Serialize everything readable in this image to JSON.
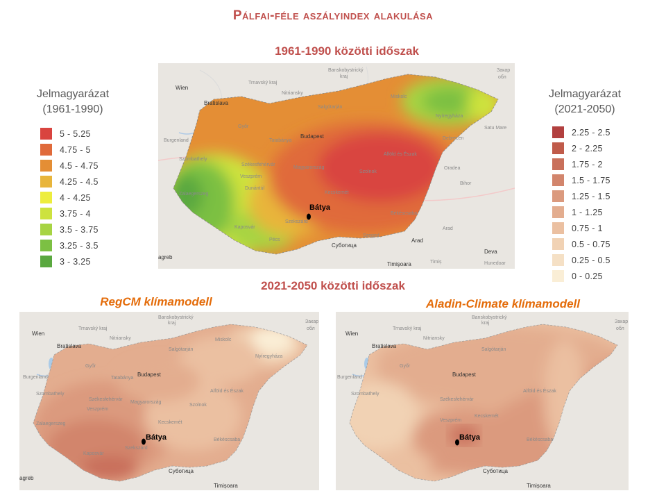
{
  "title": "Pálfai-féle aszályindex alakulása",
  "period_1961": "1961-1990 közötti időszak",
  "period_2021": "2021-2050 közötti időszak",
  "models": {
    "regcm": "RegCM klímamodell",
    "aladin": "Aladin-Climate klímamodell"
  },
  "legend_left": {
    "title_line1": "Jelmagyarázat",
    "title_line2": "(1961-1990)",
    "items": [
      {
        "label": "5 - 5.25",
        "color": "#d9443f"
      },
      {
        "label": "4.75 - 5",
        "color": "#e06a3a"
      },
      {
        "label": "4.5 - 4.75",
        "color": "#e48e35"
      },
      {
        "label": "4.25 - 4.5",
        "color": "#e8b53b"
      },
      {
        "label": "4 - 4.25",
        "color": "#eded3d"
      },
      {
        "label": "3.75 - 4",
        "color": "#cde23e"
      },
      {
        "label": "3.5 - 3.75",
        "color": "#a7d443"
      },
      {
        "label": "3.25 - 3.5",
        "color": "#7cc043"
      },
      {
        "label": "3 - 3.25",
        "color": "#5aa83f"
      }
    ]
  },
  "legend_right": {
    "title_line1": "Jelmagyarázat",
    "title_line2": "(2021-2050)",
    "items": [
      {
        "label": "2.25 - 2.5",
        "color": "#b2403f"
      },
      {
        "label": "2 - 2.25",
        "color": "#c05b4a"
      },
      {
        "label": "1.75 - 2",
        "color": "#c9705b"
      },
      {
        "label": "1.5 - 1.75",
        "color": "#d2856c"
      },
      {
        "label": "1.25 - 1.5",
        "color": "#db9a7e"
      },
      {
        "label": "1 - 1.25",
        "color": "#e3ad8f"
      },
      {
        "label": "0.75 - 1",
        "color": "#ebc0a1"
      },
      {
        "label": "0.5 - 0.75",
        "color": "#f1d2b4"
      },
      {
        "label": "0.25 - 0.5",
        "color": "#f5e0c5"
      },
      {
        "label": "0 - 0.25",
        "color": "#faeed6"
      }
    ]
  },
  "marker_label": "Bátya",
  "places": {
    "wien": "Wien",
    "bratislava": "Bratislava",
    "banskobystricky": "Banskobystrický",
    "kraj": "kraj",
    "trnavsky": "Trnavský kraj",
    "nitriansky": "Nitriansky",
    "zakarpatska": "Закар",
    "obl": "обл",
    "salgotarjan": "Salgótarján",
    "miskolc": "Miskolc",
    "nyiregyhaza": "Nyíregyháza",
    "satu_mare": "Satu Mare",
    "gyor": "Győr",
    "tatabanya": "Tatabánya",
    "budapest": "Budapest",
    "debrecen": "Debrecen",
    "burgenland": "Burgenland",
    "szombathely": "Szombathely",
    "szekesfehervar": "Székesfehérvár",
    "veszprem": "Veszprém",
    "magyarorszag": "Magyarország",
    "alfold": "Alföld és Észak",
    "szolnok": "Szolnok",
    "oradea": "Oradea",
    "dunantul": "Dunántúl",
    "zalaegerszeg": "Zalaegerszeg",
    "kecskemet": "Kecskemét",
    "bihor": "Bihor",
    "bekescsaba": "Békéscsaba",
    "kaposvar": "Kaposvár",
    "szekszard": "Szekszárd",
    "arad": "Arad",
    "pecs": "Pécs",
    "szeged": "Szeged",
    "subotica": "Суботица",
    "deva": "Deva",
    "zagreb": "agreb",
    "timisoara": "Timișoara",
    "timis": "Timiș",
    "hunedoara": "Hunedoar"
  }
}
